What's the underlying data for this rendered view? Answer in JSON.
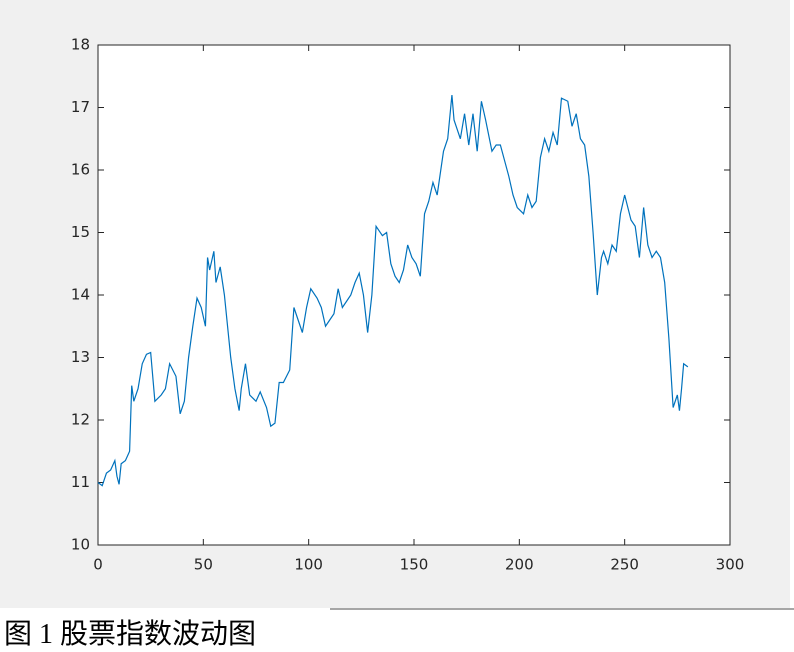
{
  "chart_data": {
    "type": "line",
    "color": "#0072bd",
    "xlim": [
      0,
      300
    ],
    "xticks": [
      0,
      50,
      100,
      150,
      200,
      250,
      300
    ],
    "ylim": [
      10,
      18
    ],
    "yticks": [
      10,
      11,
      12,
      13,
      14,
      15,
      16,
      17,
      18
    ],
    "x": [
      0,
      2,
      4,
      6,
      8,
      9,
      10,
      11,
      13,
      15,
      16,
      17,
      19,
      21,
      23,
      25,
      27,
      30,
      32,
      34,
      37,
      39,
      41,
      43,
      45,
      47,
      49,
      51,
      52,
      53,
      55,
      56,
      58,
      60,
      63,
      65,
      67,
      68,
      70,
      72,
      75,
      77,
      80,
      82,
      84,
      86,
      88,
      91,
      93,
      95,
      97,
      99,
      101,
      104,
      106,
      108,
      110,
      112,
      114,
      116,
      118,
      120,
      122,
      124,
      126,
      128,
      130,
      132,
      135,
      137,
      139,
      141,
      143,
      145,
      147,
      149,
      151,
      153,
      155,
      157,
      159,
      161,
      164,
      166,
      168,
      169,
      172,
      174,
      176,
      178,
      180,
      182,
      184,
      187,
      189,
      191,
      195,
      197,
      199,
      202,
      204,
      206,
      208,
      210,
      212,
      214,
      216,
      218,
      220,
      223,
      225,
      227,
      229,
      231,
      233,
      235,
      237,
      239,
      240,
      242,
      244,
      246,
      248,
      250,
      253,
      255,
      257,
      259,
      261,
      263,
      265,
      267,
      269,
      271,
      273,
      275,
      276,
      277,
      278,
      280
    ],
    "values": [
      11.0,
      10.95,
      11.15,
      11.2,
      11.35,
      11.1,
      10.97,
      11.3,
      11.35,
      11.5,
      12.55,
      12.3,
      12.5,
      12.9,
      13.05,
      13.08,
      12.3,
      12.4,
      12.5,
      12.9,
      12.7,
      12.1,
      12.3,
      13.0,
      13.5,
      13.95,
      13.8,
      13.5,
      14.6,
      14.4,
      14.7,
      14.2,
      14.45,
      14.0,
      13.0,
      12.5,
      12.15,
      12.5,
      12.9,
      12.4,
      12.3,
      12.45,
      12.2,
      11.9,
      11.95,
      12.6,
      12.6,
      12.8,
      13.8,
      13.6,
      13.4,
      13.8,
      14.1,
      13.95,
      13.8,
      13.5,
      13.6,
      13.7,
      14.1,
      13.8,
      13.9,
      14.0,
      14.2,
      14.35,
      14.0,
      13.4,
      14.0,
      15.1,
      14.95,
      15.0,
      14.5,
      14.3,
      14.2,
      14.4,
      14.8,
      14.6,
      14.5,
      14.3,
      15.3,
      15.5,
      15.8,
      15.6,
      16.3,
      16.5,
      17.2,
      16.8,
      16.5,
      16.9,
      16.4,
      16.9,
      16.3,
      17.1,
      16.8,
      16.3,
      16.4,
      16.4,
      15.9,
      15.6,
      15.4,
      15.3,
      15.6,
      15.4,
      15.5,
      16.2,
      16.5,
      16.3,
      16.6,
      16.4,
      17.15,
      17.1,
      16.7,
      16.9,
      16.5,
      16.4,
      15.9,
      15.0,
      14.0,
      14.6,
      14.7,
      14.5,
      14.8,
      14.7,
      15.3,
      15.6,
      15.2,
      15.1,
      14.6,
      15.4,
      14.8,
      14.6,
      14.7,
      14.6,
      14.2,
      13.3,
      12.2,
      12.4,
      12.15,
      12.5,
      12.9,
      12.85
    ]
  },
  "caption": "图 1  股票指数波动图"
}
